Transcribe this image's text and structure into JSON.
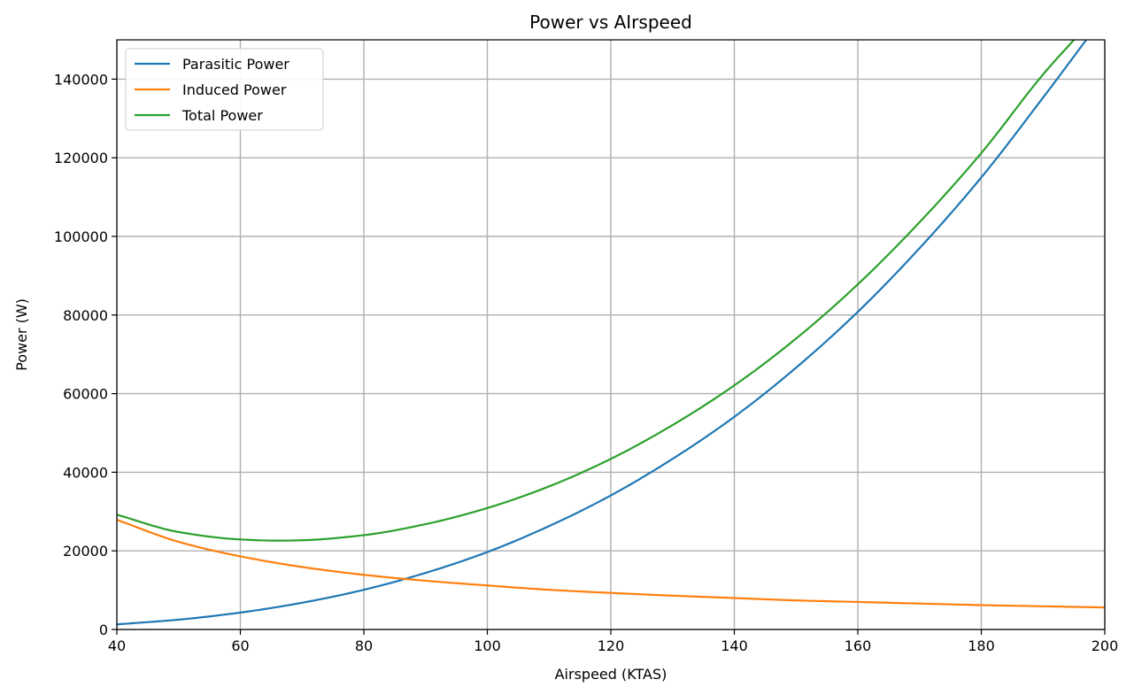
{
  "chart_data": {
    "type": "line",
    "title": "Power vs AIrspeed",
    "xlabel": "Airspeed (KTAS)",
    "ylabel": "Power (W)",
    "xlim": [
      40,
      200
    ],
    "ylim": [
      0,
      150000
    ],
    "xticks": [
      40,
      60,
      80,
      100,
      120,
      140,
      160,
      180,
      200
    ],
    "yticks": [
      0,
      20000,
      40000,
      60000,
      80000,
      100000,
      120000,
      140000
    ],
    "grid": true,
    "legend_position": "top-left",
    "series": [
      {
        "name": "Parasitic Power",
        "color": "#1f77b4",
        "x": [
          40,
          50,
          60,
          70,
          80,
          90,
          100,
          110,
          120,
          130,
          140,
          150,
          160,
          170,
          180,
          190,
          197
        ],
        "y": [
          1300,
          2500,
          4300,
          6800,
          10100,
          14400,
          19700,
          26300,
          34100,
          43400,
          54100,
          66600,
          80800,
          97000,
          115000,
          135300,
          150000
        ]
      },
      {
        "name": "Induced Power",
        "color": "#ff7f0e",
        "x": [
          40,
          50,
          60,
          70,
          80,
          90,
          100,
          110,
          120,
          130,
          140,
          150,
          160,
          170,
          180,
          190,
          200
        ],
        "y": [
          27900,
          22300,
          18600,
          15900,
          13900,
          12400,
          11200,
          10100,
          9300,
          8600,
          8000,
          7400,
          7000,
          6600,
          6200,
          5900,
          5600
        ]
      },
      {
        "name": "Total Power",
        "color": "#2ca02c",
        "x": [
          40,
          50,
          60,
          66,
          70,
          80,
          90,
          100,
          110,
          120,
          130,
          140,
          150,
          160,
          170,
          180,
          190,
          195
        ],
        "y": [
          29200,
          24800,
          22900,
          22600,
          22700,
          24000,
          26800,
          30900,
          36400,
          43400,
          52000,
          62100,
          74000,
          87800,
          103600,
          121200,
          141200,
          150000
        ]
      }
    ]
  }
}
